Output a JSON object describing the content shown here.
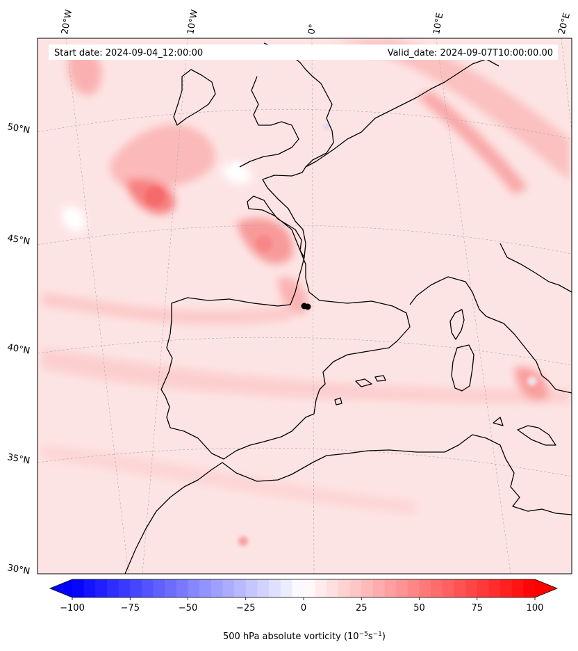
{
  "header": {
    "start_date": "Start date: 2024-09-04_12:00:00",
    "valid_date": "Valid_date: 2024-09-07T10:00:00.00"
  },
  "map": {
    "lon_labels": [
      "20°W",
      "10°W",
      "0°",
      "10°E",
      "20°E"
    ],
    "lat_labels": [
      "50°N",
      "45°N",
      "40°N",
      "35°N",
      "30°N"
    ],
    "marker": "track-point"
  },
  "colorbar": {
    "tick_labels": [
      "−100",
      "−75",
      "−50",
      "−25",
      "0",
      "25",
      "50",
      "75",
      "100"
    ],
    "label_main": "500 hPa absolute vorticity (10",
    "label_exp1": "−5",
    "label_mid": "s",
    "label_exp2": "−1",
    "label_end": ")"
  },
  "chart_data": {
    "type": "heatmap",
    "variable": "500 hPa absolute vorticity",
    "units": "10^-5 s^-1",
    "vmin": -100,
    "vmax": 100,
    "ticks": [
      -100,
      -75,
      -50,
      -25,
      0,
      25,
      50,
      75,
      100
    ],
    "colormap": "bwr",
    "extend": "both"
  },
  "colors": {
    "neg": "#0000ff",
    "pos": "#ff0000",
    "background_tint": "#fde2e2"
  }
}
